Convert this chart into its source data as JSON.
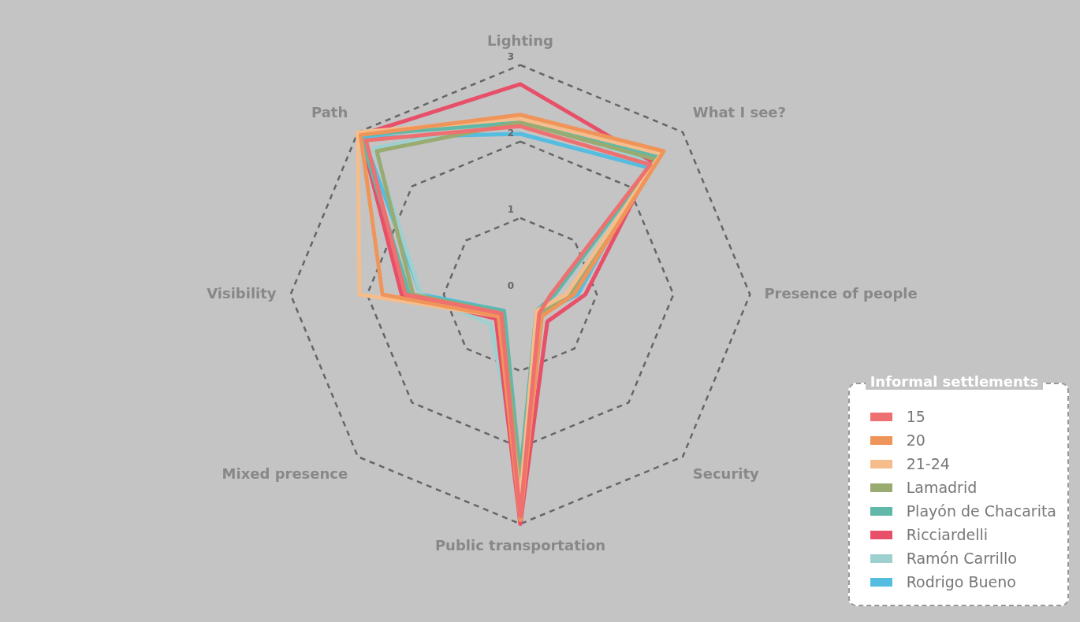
{
  "chart_data": {
    "type": "radar",
    "categories": [
      "Lighting",
      "What I see?",
      "Presence of people",
      "Security",
      "Public transportation",
      "Mixed presence",
      "Visibility",
      "Path"
    ],
    "ylim": [
      0,
      3
    ],
    "yticks": [
      0,
      1,
      2,
      3
    ],
    "grid": true,
    "legend": "bottom right",
    "legend_title": "Informal settlements",
    "marker": "none",
    "series": [
      {
        "name": "15",
        "color": "#ee7070",
        "values": [
          2.2,
          2.4,
          0.4,
          0.35,
          2.9,
          0.35,
          1.5,
          2.85
        ]
      },
      {
        "name": "20",
        "color": "#f0955a",
        "values": [
          2.35,
          2.65,
          0.7,
          0.4,
          2.95,
          0.4,
          1.8,
          2.95
        ]
      },
      {
        "name": "21-24",
        "color": "#f5bd8c",
        "values": [
          2.3,
          2.6,
          0.6,
          0.3,
          2.7,
          0.4,
          2.1,
          3
        ]
      },
      {
        "name": "Lamadrid",
        "color": "#9aab72",
        "values": [
          2.25,
          2.5,
          0.65,
          0.35,
          2.5,
          0.35,
          1.4,
          2.65
        ]
      },
      {
        "name": "Playón de Chacarita",
        "color": "#5fb8a8",
        "values": [
          2.25,
          2.55,
          0.45,
          0.3,
          2.35,
          0.3,
          1.45,
          2.95
        ]
      },
      {
        "name": "Ricciardelli",
        "color": "#e8506a",
        "values": [
          2.75,
          2.45,
          0.85,
          0.5,
          3,
          0.45,
          1.55,
          2.95
        ]
      },
      {
        "name": "Ramón Carrillo",
        "color": "#9fd0d0",
        "values": [
          2.3,
          2.45,
          0.6,
          0.4,
          2.45,
          0.55,
          1.3,
          2.7
        ]
      },
      {
        "name": "Rodrigo Bueno",
        "color": "#55bde0",
        "values": [
          2.1,
          2.35,
          0.75,
          0.35,
          2.55,
          0.3,
          1.3,
          2.9
        ]
      }
    ]
  }
}
